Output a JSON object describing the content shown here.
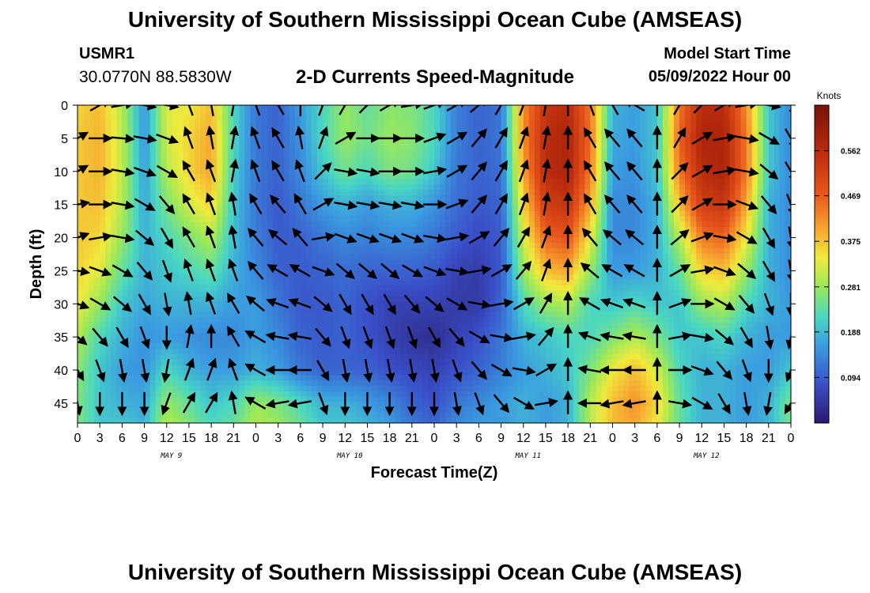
{
  "header": {
    "title": "University of Southern Mississippi Ocean Cube (AMSEAS)",
    "station_id": "USMR1",
    "station_coords": "30.0770N  88.5830W",
    "chart_title": "2-D Currents Speed-Magnitude",
    "model_start_label": "Model Start Time",
    "model_start_value": "05/09/2022 Hour 00"
  },
  "footer": {
    "title": "University of Southern Mississippi Ocean Cube (AMSEAS)"
  },
  "chart_data": {
    "type": "heatmap",
    "title": "2-D Currents Speed-Magnitude",
    "xlabel": "Forecast Time(Z)",
    "ylabel": "Depth (ft)",
    "x_ticks": [
      "0",
      "3",
      "6",
      "9",
      "12",
      "15",
      "18",
      "21",
      "0",
      "3",
      "6",
      "9",
      "12",
      "15",
      "18",
      "21",
      "0",
      "3",
      "6",
      "9",
      "12",
      "15",
      "18",
      "21",
      "0",
      "3",
      "6",
      "9",
      "12",
      "15",
      "18",
      "21",
      "0"
    ],
    "x_range_hours": [
      0,
      96
    ],
    "day_labels": [
      {
        "label": "MAY 9",
        "hour": 12
      },
      {
        "label": "MAY 10",
        "hour": 36
      },
      {
        "label": "MAY 11",
        "hour": 60
      },
      {
        "label": "MAY 12",
        "hour": 84
      }
    ],
    "y_ticks": [
      "0",
      "5",
      "10",
      "15",
      "20",
      "25",
      "30",
      "35",
      "40",
      "45"
    ],
    "y_range_ft": [
      0,
      48
    ],
    "colorbar": {
      "unit": "Knots",
      "range": [
        0,
        0.656
      ],
      "ticks": [
        {
          "value": 0.094,
          "label": "0.094"
        },
        {
          "value": 0.188,
          "label": "0.188"
        },
        {
          "value": 0.281,
          "label": "0.281"
        },
        {
          "value": 0.375,
          "label": "0.375"
        },
        {
          "value": 0.469,
          "label": "0.469"
        },
        {
          "value": 0.562,
          "label": "0.562"
        }
      ]
    },
    "speed_profile": {
      "hours": [
        0,
        3,
        6,
        9,
        12,
        15,
        18,
        21,
        24,
        27,
        30,
        33,
        36,
        39,
        42,
        45,
        48,
        51,
        54,
        57,
        60,
        63,
        66,
        69,
        72,
        75,
        78,
        81,
        84,
        87,
        90,
        93,
        96
      ],
      "depths_ft": [
        0,
        5,
        10,
        15,
        20,
        25,
        30,
        35,
        40,
        45,
        48
      ],
      "values_knots": [
        [
          0.36,
          0.38,
          0.3,
          0.15,
          0.33,
          0.34,
          0.38,
          0.22,
          0.12,
          0.1,
          0.16,
          0.22,
          0.28,
          0.24,
          0.27,
          0.26,
          0.22,
          0.13,
          0.1,
          0.12,
          0.42,
          0.54,
          0.56,
          0.44,
          0.18,
          0.16,
          0.2,
          0.44,
          0.56,
          0.56,
          0.42,
          0.2,
          0.14
        ],
        [
          0.37,
          0.39,
          0.31,
          0.15,
          0.32,
          0.36,
          0.4,
          0.22,
          0.12,
          0.1,
          0.15,
          0.22,
          0.28,
          0.25,
          0.28,
          0.27,
          0.22,
          0.13,
          0.1,
          0.12,
          0.42,
          0.56,
          0.58,
          0.45,
          0.17,
          0.16,
          0.2,
          0.46,
          0.58,
          0.58,
          0.44,
          0.2,
          0.14
        ],
        [
          0.37,
          0.39,
          0.31,
          0.16,
          0.3,
          0.36,
          0.4,
          0.21,
          0.12,
          0.1,
          0.14,
          0.2,
          0.25,
          0.22,
          0.26,
          0.25,
          0.2,
          0.12,
          0.1,
          0.11,
          0.4,
          0.56,
          0.58,
          0.44,
          0.16,
          0.15,
          0.2,
          0.44,
          0.56,
          0.58,
          0.44,
          0.2,
          0.14
        ],
        [
          0.37,
          0.38,
          0.3,
          0.17,
          0.26,
          0.32,
          0.36,
          0.2,
          0.12,
          0.09,
          0.12,
          0.16,
          0.18,
          0.16,
          0.18,
          0.18,
          0.15,
          0.11,
          0.09,
          0.1,
          0.36,
          0.52,
          0.54,
          0.4,
          0.14,
          0.14,
          0.18,
          0.38,
          0.52,
          0.54,
          0.4,
          0.18,
          0.14
        ],
        [
          0.37,
          0.36,
          0.28,
          0.18,
          0.22,
          0.26,
          0.3,
          0.19,
          0.13,
          0.09,
          0.1,
          0.12,
          0.14,
          0.13,
          0.14,
          0.14,
          0.12,
          0.09,
          0.07,
          0.09,
          0.32,
          0.46,
          0.48,
          0.34,
          0.14,
          0.14,
          0.18,
          0.3,
          0.44,
          0.46,
          0.34,
          0.18,
          0.14
        ],
        [
          0.36,
          0.33,
          0.24,
          0.18,
          0.2,
          0.22,
          0.24,
          0.18,
          0.14,
          0.1,
          0.09,
          0.1,
          0.11,
          0.1,
          0.1,
          0.1,
          0.09,
          0.06,
          0.05,
          0.09,
          0.28,
          0.38,
          0.4,
          0.28,
          0.16,
          0.16,
          0.18,
          0.24,
          0.36,
          0.38,
          0.28,
          0.18,
          0.14
        ],
        [
          0.34,
          0.28,
          0.2,
          0.17,
          0.18,
          0.18,
          0.18,
          0.16,
          0.16,
          0.12,
          0.09,
          0.09,
          0.1,
          0.08,
          0.06,
          0.06,
          0.06,
          0.05,
          0.05,
          0.1,
          0.22,
          0.28,
          0.3,
          0.22,
          0.2,
          0.22,
          0.2,
          0.2,
          0.28,
          0.3,
          0.22,
          0.18,
          0.16
        ],
        [
          0.3,
          0.22,
          0.18,
          0.15,
          0.16,
          0.15,
          0.14,
          0.14,
          0.16,
          0.14,
          0.1,
          0.09,
          0.1,
          0.08,
          0.06,
          0.04,
          0.03,
          0.06,
          0.08,
          0.12,
          0.18,
          0.2,
          0.22,
          0.22,
          0.26,
          0.3,
          0.26,
          0.2,
          0.2,
          0.22,
          0.18,
          0.16,
          0.16
        ],
        [
          0.27,
          0.2,
          0.16,
          0.15,
          0.22,
          0.18,
          0.16,
          0.16,
          0.18,
          0.16,
          0.12,
          0.1,
          0.1,
          0.1,
          0.08,
          0.07,
          0.06,
          0.08,
          0.1,
          0.13,
          0.16,
          0.18,
          0.2,
          0.26,
          0.34,
          0.38,
          0.32,
          0.22,
          0.18,
          0.18,
          0.16,
          0.16,
          0.2
        ],
        [
          0.26,
          0.2,
          0.18,
          0.17,
          0.28,
          0.24,
          0.2,
          0.22,
          0.28,
          0.26,
          0.22,
          0.18,
          0.18,
          0.16,
          0.14,
          0.1,
          0.08,
          0.12,
          0.14,
          0.16,
          0.18,
          0.16,
          0.18,
          0.3,
          0.38,
          0.42,
          0.36,
          0.24,
          0.18,
          0.18,
          0.16,
          0.18,
          0.26
        ],
        [
          0.26,
          0.2,
          0.2,
          0.18,
          0.3,
          0.26,
          0.22,
          0.24,
          0.3,
          0.28,
          0.24,
          0.2,
          0.2,
          0.18,
          0.16,
          0.12,
          0.1,
          0.14,
          0.16,
          0.16,
          0.18,
          0.16,
          0.18,
          0.3,
          0.38,
          0.4,
          0.34,
          0.24,
          0.18,
          0.18,
          0.16,
          0.18,
          0.26
        ]
      ]
    },
    "current_vectors": {
      "description": "arrows show current direction; angle in degrees (0 = pointing up, clockwise)",
      "hours": [
        0,
        3,
        6,
        9,
        12,
        15,
        18,
        21,
        24,
        27,
        30,
        33,
        36,
        39,
        42,
        45,
        48,
        51,
        54,
        57,
        60,
        63,
        66,
        69,
        72,
        75,
        78,
        81,
        84,
        87,
        90,
        93,
        96
      ],
      "depths_ft": [
        0,
        5,
        10,
        15,
        20,
        25,
        30,
        35,
        40,
        45
      ],
      "directions_deg": [
        [
          45,
          60,
          80,
          100,
          100,
          340,
          350,
          10,
          340,
          330,
          0,
          20,
          30,
          45,
          60,
          80,
          70,
          60,
          50,
          30,
          20,
          10,
          0,
          340,
          330,
          300,
          0,
          30,
          45,
          60,
          80,
          100,
          150
        ],
        [
          60,
          90,
          95,
          100,
          110,
          340,
          350,
          10,
          340,
          330,
          350,
          20,
          60,
          90,
          90,
          90,
          70,
          60,
          40,
          30,
          20,
          10,
          0,
          330,
          320,
          320,
          0,
          30,
          60,
          80,
          100,
          120,
          150
        ],
        [
          60,
          90,
          100,
          110,
          120,
          330,
          340,
          10,
          340,
          330,
          340,
          45,
          100,
          100,
          90,
          90,
          80,
          60,
          40,
          30,
          20,
          10,
          0,
          330,
          320,
          320,
          0,
          45,
          60,
          80,
          100,
          130,
          150
        ],
        [
          80,
          90,
          100,
          120,
          140,
          330,
          340,
          350,
          330,
          320,
          330,
          60,
          100,
          100,
          100,
          100,
          90,
          70,
          40,
          30,
          20,
          10,
          0,
          330,
          320,
          320,
          0,
          45,
          60,
          90,
          110,
          140,
          160
        ],
        [
          70,
          80,
          100,
          130,
          150,
          330,
          340,
          350,
          320,
          310,
          320,
          80,
          110,
          110,
          110,
          110,
          100,
          80,
          60,
          40,
          30,
          20,
          0,
          320,
          310,
          310,
          0,
          50,
          70,
          100,
          120,
          150,
          170
        ],
        [
          100,
          110,
          120,
          140,
          160,
          340,
          340,
          340,
          320,
          300,
          300,
          110,
          130,
          130,
          130,
          120,
          110,
          100,
          80,
          60,
          40,
          20,
          0,
          310,
          300,
          300,
          0,
          60,
          80,
          110,
          130,
          150,
          170
        ],
        [
          110,
          120,
          130,
          150,
          170,
          350,
          340,
          330,
          310,
          290,
          290,
          130,
          150,
          150,
          150,
          140,
          130,
          120,
          100,
          80,
          60,
          30,
          0,
          300,
          290,
          290,
          0,
          70,
          90,
          120,
          140,
          160,
          180
        ],
        [
          130,
          140,
          150,
          160,
          180,
          10,
          0,
          330,
          300,
          280,
          280,
          140,
          160,
          160,
          160,
          160,
          150,
          140,
          120,
          100,
          80,
          40,
          0,
          290,
          280,
          280,
          0,
          80,
          100,
          130,
          150,
          170,
          190
        ],
        [
          150,
          160,
          170,
          170,
          190,
          20,
          20,
          340,
          300,
          270,
          270,
          150,
          170,
          170,
          170,
          170,
          170,
          160,
          140,
          120,
          100,
          60,
          0,
          280,
          270,
          270,
          0,
          90,
          110,
          140,
          160,
          180,
          200
        ],
        [
          170,
          180,
          180,
          180,
          200,
          30,
          30,
          350,
          300,
          260,
          260,
          160,
          180,
          180,
          180,
          180,
          180,
          170,
          160,
          140,
          120,
          80,
          0,
          270,
          260,
          260,
          0,
          100,
          120,
          150,
          170,
          190,
          210
        ]
      ]
    }
  }
}
